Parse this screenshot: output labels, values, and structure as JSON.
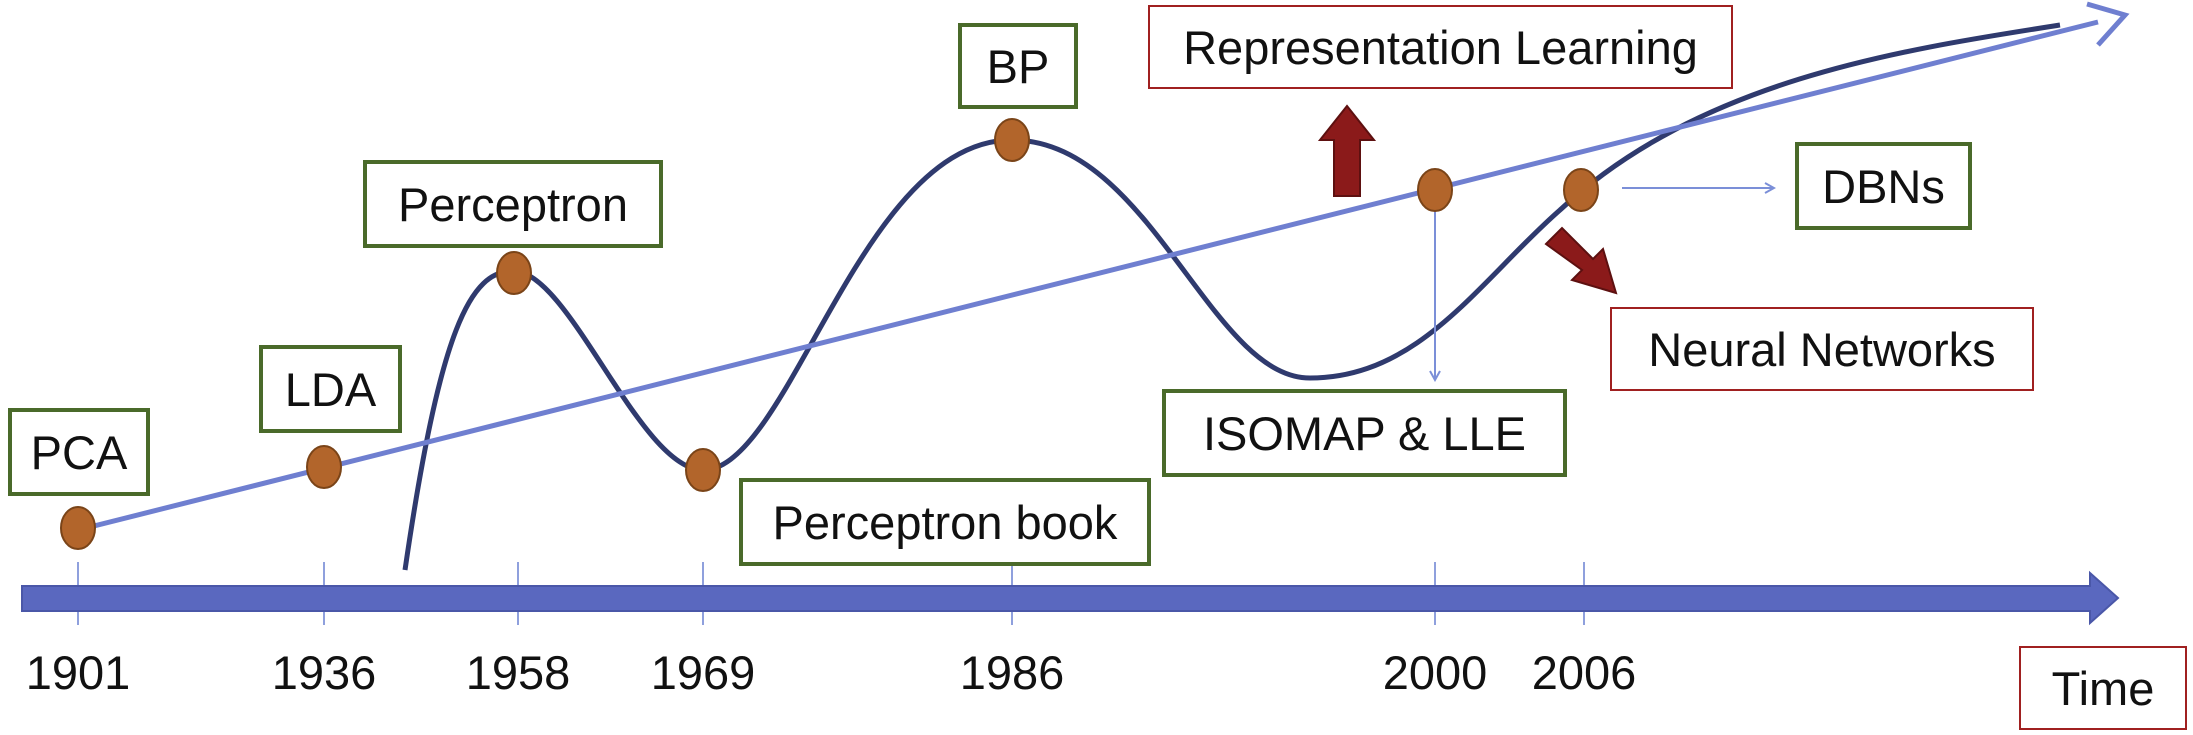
{
  "timeline": {
    "years": [
      "1901",
      "1936",
      "1958",
      "1969",
      "1986",
      "2000",
      "2006"
    ],
    "axis_label": "Time"
  },
  "labels": {
    "pca": "PCA",
    "lda": "LDA",
    "perceptron": "Perceptron",
    "perceptron_book": "Perceptron book",
    "bp": "BP",
    "isomap_lle": "ISOMAP & LLE",
    "dbns": "DBNs",
    "representation_learning": "Representation Learning",
    "neural_networks": "Neural Networks"
  },
  "colors": {
    "timeline_arrow": "#5a68bf",
    "trend_line": "#6f7fd0",
    "wave_curve": "#2f3a6e",
    "event_dot": "#b2652b",
    "green_border": "#4a6a2a",
    "red_border": "#a02020",
    "dark_red_arrow": "#8b1a1a"
  }
}
